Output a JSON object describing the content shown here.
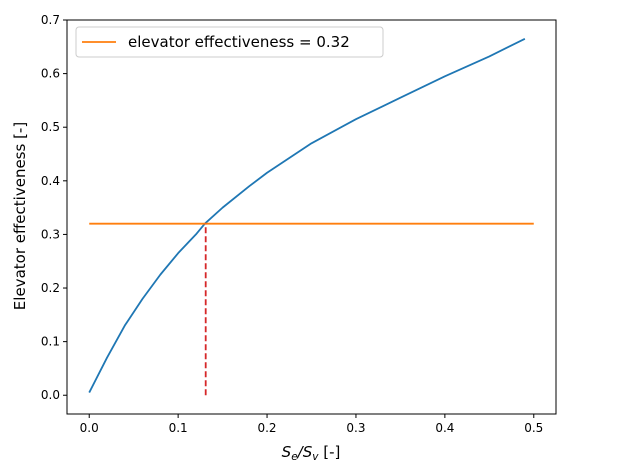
{
  "chart_data": {
    "type": "line",
    "xlabel_main": "S",
    "xlabel_sub1": "e",
    "xlabel_sep": "/S",
    "xlabel_sub2": "v",
    "xlabel_unit": " [-]",
    "ylabel": "Elevator effectiveness [-]",
    "xlim": [
      -0.025,
      0.525
    ],
    "ylim": [
      -0.035,
      0.7
    ],
    "xticks": [
      0.0,
      0.1,
      0.2,
      0.3,
      0.4,
      0.5
    ],
    "xtick_labels": [
      "0.0",
      "0.1",
      "0.2",
      "0.3",
      "0.4",
      "0.5"
    ],
    "yticks": [
      0.0,
      0.1,
      0.2,
      0.3,
      0.4,
      0.5,
      0.6,
      0.7
    ],
    "ytick_labels": [
      "0.0",
      "0.1",
      "0.2",
      "0.3",
      "0.4",
      "0.5",
      "0.6",
      "0.7"
    ],
    "legend": {
      "location": "top-left",
      "entries": [
        "elevator effectiveness = 0.32"
      ]
    },
    "series": [
      {
        "name": "",
        "color": "#1f77b4",
        "style": "solid",
        "x": [
          0.0,
          0.02,
          0.04,
          0.06,
          0.08,
          0.1,
          0.12,
          0.13,
          0.15,
          0.18,
          0.2,
          0.25,
          0.3,
          0.35,
          0.4,
          0.45,
          0.49
        ],
        "y": [
          0.005,
          0.07,
          0.13,
          0.18,
          0.225,
          0.265,
          0.3,
          0.32,
          0.35,
          0.39,
          0.415,
          0.47,
          0.515,
          0.555,
          0.595,
          0.632,
          0.665
        ]
      },
      {
        "name": "elevator effectiveness = 0.32",
        "color": "#ff7f0e",
        "style": "solid",
        "x": [
          0.0,
          0.5
        ],
        "y": [
          0.32,
          0.32
        ]
      },
      {
        "name": "",
        "color": "#d62728",
        "style": "dashed",
        "x": [
          0.131,
          0.131
        ],
        "y": [
          0.0,
          0.32
        ]
      }
    ]
  }
}
